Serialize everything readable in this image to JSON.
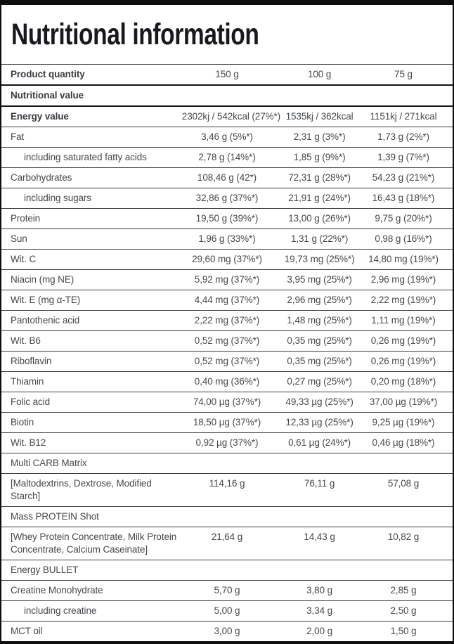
{
  "title": "Nutritional information",
  "colors": {
    "frame_border": "#0d0d0d",
    "row_divider": "#3f3f3f",
    "section_divider": "#131313",
    "text": "#45484c",
    "title_text": "#17191d",
    "background": "#ffffff"
  },
  "table": {
    "rows": [
      {
        "style": "quantity",
        "label": "Product quantity",
        "values": [
          "150 g",
          "100 g",
          "75 g"
        ]
      },
      {
        "style": "section-bold",
        "label": "Nutritional value",
        "values": []
      },
      {
        "style": "bold",
        "label": "Energy value",
        "values": [
          "2302kj / 542kcal (27%*)",
          "1535kj / 362kcal",
          "1151kj / 271kcal"
        ]
      },
      {
        "style": "normal",
        "label": "Fat",
        "values": [
          "3,46 g (5%*)",
          "2,31 g (3%*)",
          "1,73 g (2%*)"
        ]
      },
      {
        "style": "indent",
        "label": "including saturated fatty acids",
        "values": [
          "2,78 g (14%*)",
          "1,85 g (9%*)",
          "1,39 g (7%*)"
        ]
      },
      {
        "style": "normal",
        "label": "Carbohydrates",
        "values": [
          "108,46 g (42*)",
          "72,31 g (28%*)",
          "54,23 g (21%*)"
        ]
      },
      {
        "style": "indent",
        "label": "including sugars",
        "values": [
          "32,86 g (37%*)",
          "21,91 g (24%*)",
          "16,43 g (18%*)"
        ]
      },
      {
        "style": "normal",
        "label": "Protein",
        "values": [
          "19,50 g (39%*)",
          "13,00 g (26%*)",
          "9,75 g (20%*)"
        ]
      },
      {
        "style": "normal",
        "label": "Sun",
        "values": [
          "1,96 g (33%*)",
          "1,31 g (22%*)",
          "0,98 g (16%*)"
        ]
      },
      {
        "style": "normal",
        "label": "Wit. C",
        "values": [
          "29,60 mg (37%*)",
          "19,73 mg (25%*)",
          "14,80 mg (19%*)"
        ]
      },
      {
        "style": "normal",
        "label": "Niacin (mg NE)",
        "values": [
          "5,92 mg (37%*)",
          "3,95 mg (25%*)",
          "2,96 mg (19%*)"
        ]
      },
      {
        "style": "normal",
        "label": "Wit. E (mg α-TE)",
        "values": [
          "4,44 mg (37%*)",
          "2,96 mg (25%*)",
          "2,22 mg (19%*)"
        ]
      },
      {
        "style": "normal",
        "label": "Pantothenic acid",
        "values": [
          "2,22 mg (37%*)",
          "1,48 mg (25%*)",
          "1,11 mg (19%*)"
        ]
      },
      {
        "style": "normal",
        "label": "Wit. B6",
        "values": [
          "0,52 mg (37%*)",
          "0,35 mg (25%*)",
          "0,26 mg (19%*)"
        ]
      },
      {
        "style": "normal",
        "label": "Riboflavin",
        "values": [
          "0,52 mg (37%*)",
          "0,35 mg (25%*)",
          "0,26 mg (19%*)"
        ]
      },
      {
        "style": "normal",
        "label": "Thiamin",
        "values": [
          "0,40 mg (36%*)",
          "0,27 mg (25%*)",
          "0,20 mg (18%*)"
        ]
      },
      {
        "style": "normal",
        "label": "Folic acid",
        "values": [
          "74,00 µg (37%*)",
          "49,33 µg (25%*)",
          "37,00 µg (19%*)"
        ]
      },
      {
        "style": "normal",
        "label": "Biotin",
        "values": [
          "18,50 µg (37%*)",
          "12,33 µg (25%*)",
          "9,25 µg (19%*)"
        ]
      },
      {
        "style": "normal",
        "label": "Wit. B12",
        "values": [
          "0,92 µg (37%*)",
          "0,61 µg (24%*)",
          "0,46 µg (18%*)"
        ]
      },
      {
        "style": "section",
        "label": "Multi CARB Matrix",
        "values": []
      },
      {
        "style": "normal",
        "label": "[Maltodextrins, Dextrose, Modified Starch]",
        "values": [
          "114,16 g",
          "76,11 g",
          "57,08 g"
        ]
      },
      {
        "style": "section",
        "label": "Mass PROTEIN Shot",
        "values": []
      },
      {
        "style": "normal",
        "label": "[Whey Protein Concentrate, Milk Protein Concentrate, Calcium Caseinate]",
        "values": [
          "21,64 g",
          "14,43 g",
          "10,82 g"
        ]
      },
      {
        "style": "section",
        "label": "Energy BULLET",
        "values": []
      },
      {
        "style": "normal",
        "label": "Creatine Monohydrate",
        "values": [
          "5,70 g",
          "3,80 g",
          "2,85 g"
        ]
      },
      {
        "style": "indent",
        "label": "including creatine",
        "values": [
          "5,00 g",
          "3,34 g",
          "2,50 g"
        ]
      },
      {
        "style": "normal",
        "label": "MCT oil",
        "values": [
          "3,00 g",
          "2,00 g",
          "1,50 g"
        ]
      }
    ]
  }
}
